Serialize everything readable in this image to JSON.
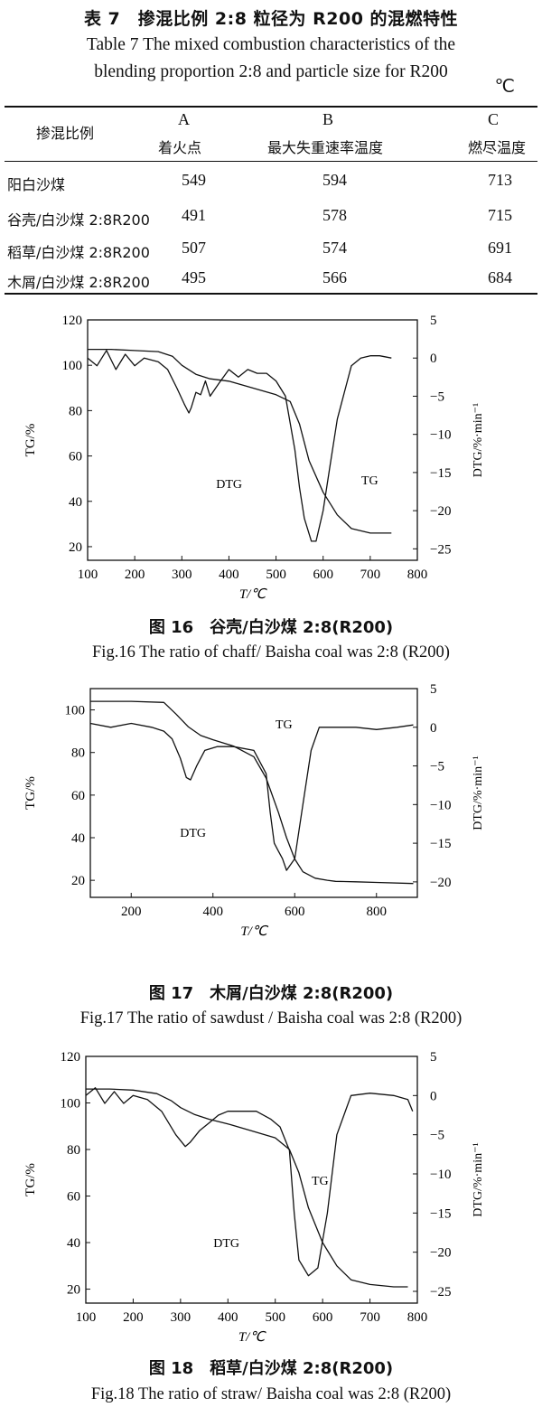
{
  "table": {
    "title_cn": "表 7　掺混比例 2:8 粒径为 R200 的混燃特性",
    "title_en_line1": "Table 7 The mixed combustion characteristics of the",
    "title_en_line2": "blending proportion 2:8 and particle size for R200",
    "unit": "℃",
    "header": {
      "col0": "掺混比例",
      "col1_letter": "A",
      "col1_name": "着火点",
      "col2_letter": "B",
      "col2_name": "最大失重速率温度",
      "col3_letter": "C",
      "col3_name": "燃尽温度"
    },
    "rows": [
      {
        "name": "阳白沙煤",
        "a": "549",
        "b": "594",
        "c": "713"
      },
      {
        "name": "谷壳/白沙煤 2:8R200",
        "a": "491",
        "b": "578",
        "c": "715"
      },
      {
        "name": "稻草/白沙煤 2:8R200",
        "a": "507",
        "b": "574",
        "c": "691"
      },
      {
        "name": "木屑/白沙煤 2:8R200",
        "a": "495",
        "b": "566",
        "c": "684"
      }
    ]
  },
  "chart_data": [
    {
      "type": "line",
      "figure": "16",
      "caption_cn": "图 16　谷壳/白沙煤 2:8(R200)",
      "caption_en": "Fig.16 The ratio of chaff/ Baisha coal was 2:8 (R200)",
      "xlabel": "T/℃",
      "ylabel": "TG/%",
      "y2label": "DTG/%·min⁻¹",
      "xlim": [
        100,
        800
      ],
      "ylim": [
        14,
        120
      ],
      "y2lim": [
        -26.5,
        5
      ],
      "xticks": [
        100,
        200,
        300,
        400,
        500,
        600,
        700,
        800
      ],
      "yticks": [
        20,
        40,
        60,
        80,
        100,
        120
      ],
      "y2ticks": [
        5,
        0,
        -5,
        -10,
        -15,
        -20,
        -25
      ],
      "series": [
        {
          "name": "TG",
          "axis": "left",
          "x": [
            100,
            150,
            200,
            250,
            280,
            300,
            330,
            360,
            400,
            450,
            500,
            530,
            550,
            570,
            600,
            630,
            660,
            700,
            745
          ],
          "y": [
            107,
            107,
            106.5,
            106,
            104,
            100,
            96,
            94,
            93,
            90,
            87,
            84,
            74,
            58,
            44,
            34,
            28,
            26,
            26
          ]
        },
        {
          "name": "DTG",
          "axis": "right",
          "x": [
            100,
            120,
            140,
            160,
            180,
            200,
            220,
            250,
            270,
            290,
            305,
            315,
            320,
            330,
            340,
            350,
            360,
            380,
            400,
            420,
            440,
            460,
            480,
            500,
            520,
            540,
            550,
            560,
            575,
            585,
            600,
            615,
            630,
            660,
            680,
            700,
            720,
            745
          ],
          "y": [
            0,
            -1,
            1,
            -1.5,
            0.5,
            -1,
            0,
            -0.5,
            -1.5,
            -4,
            -6,
            -7.2,
            -6.5,
            -4.5,
            -4.8,
            -3,
            -5,
            -3.2,
            -1.5,
            -2.5,
            -1.5,
            -2,
            -2,
            -3,
            -5,
            -12,
            -17,
            -21,
            -24,
            -24,
            -20,
            -14,
            -8,
            -1,
            0,
            0.3,
            0.3,
            0
          ]
        }
      ]
    },
    {
      "type": "line",
      "figure": "17",
      "caption_cn": "图 17　木屑/白沙煤 2:8(R200)",
      "caption_en": "Fig.17 The ratio of sawdust / Baisha coal was 2:8 (R200)",
      "xlabel": "T/℃",
      "ylabel": "TG/%",
      "y2label": "DTG/%·min⁻¹",
      "xlim": [
        100,
        900
      ],
      "ylim": [
        12,
        110
      ],
      "y2lim": [
        -22,
        5
      ],
      "xticks": [
        200,
        400,
        600,
        800
      ],
      "yticks": [
        20,
        40,
        60,
        80,
        100
      ],
      "y2ticks": [
        5,
        0,
        -5,
        -10,
        -15,
        -20
      ],
      "series": [
        {
          "name": "TG",
          "axis": "left",
          "x": [
            100,
            200,
            280,
            310,
            340,
            370,
            400,
            450,
            500,
            530,
            560,
            580,
            600,
            620,
            650,
            680,
            700,
            750,
            800,
            890
          ],
          "y": [
            104,
            104,
            103.5,
            98,
            92,
            88,
            86,
            83,
            78,
            68,
            52,
            40,
            30,
            24,
            21,
            20,
            19.5,
            19.3,
            19,
            18.5
          ]
        },
        {
          "name": "DTG",
          "axis": "right",
          "x": [
            100,
            150,
            200,
            250,
            280,
            300,
            320,
            335,
            345,
            360,
            380,
            410,
            450,
            500,
            530,
            540,
            550,
            560,
            570,
            580,
            600,
            620,
            640,
            660,
            700,
            750,
            800,
            850,
            890
          ],
          "y": [
            0.5,
            0,
            0.5,
            0,
            -0.5,
            -1.5,
            -4,
            -6.5,
            -6.8,
            -5,
            -3,
            -2.5,
            -2.5,
            -3,
            -6,
            -11,
            -15,
            -16,
            -17,
            -18.5,
            -17,
            -10,
            -3,
            0,
            0,
            0,
            -0.3,
            0,
            0.3
          ]
        }
      ]
    },
    {
      "type": "line",
      "figure": "18",
      "caption_cn": "图 18　稻草/白沙煤 2:8(R200)",
      "caption_en": "Fig.18 The ratio of straw/ Baisha coal was 2:8 (R200)",
      "xlabel": "T/℃",
      "ylabel": "TG/%",
      "y2label": "DTG/%·min⁻¹",
      "xlim": [
        100,
        800
      ],
      "ylim": [
        14,
        120
      ],
      "y2lim": [
        -26.5,
        5
      ],
      "xticks": [
        100,
        200,
        300,
        400,
        500,
        600,
        700,
        800
      ],
      "yticks": [
        20,
        40,
        60,
        80,
        100,
        120
      ],
      "y2ticks": [
        5,
        0,
        -5,
        -10,
        -15,
        -20,
        -25
      ],
      "series": [
        {
          "name": "TG",
          "axis": "left",
          "x": [
            100,
            150,
            200,
            250,
            280,
            300,
            330,
            360,
            400,
            450,
            500,
            530,
            550,
            570,
            600,
            630,
            660,
            700,
            750,
            780
          ],
          "y": [
            106,
            106,
            105.5,
            104,
            101,
            98,
            95,
            93,
            91,
            88,
            85,
            80,
            70,
            55,
            40,
            30,
            24,
            22,
            21,
            21
          ]
        },
        {
          "name": "DTG",
          "axis": "right",
          "x": [
            100,
            120,
            140,
            160,
            180,
            200,
            230,
            260,
            290,
            310,
            320,
            340,
            360,
            380,
            400,
            430,
            460,
            490,
            510,
            530,
            540,
            550,
            560,
            570,
            590,
            610,
            630,
            660,
            700,
            750,
            780,
            790
          ],
          "y": [
            0,
            1,
            -1,
            0.5,
            -1,
            0,
            -0.5,
            -2,
            -5,
            -6.5,
            -6,
            -4.5,
            -3.5,
            -2.5,
            -2,
            -2,
            -2,
            -3,
            -4,
            -7,
            -15,
            -21,
            -22,
            -23,
            -22,
            -15,
            -5,
            0,
            0.3,
            0,
            -0.5,
            -2
          ]
        }
      ]
    }
  ]
}
